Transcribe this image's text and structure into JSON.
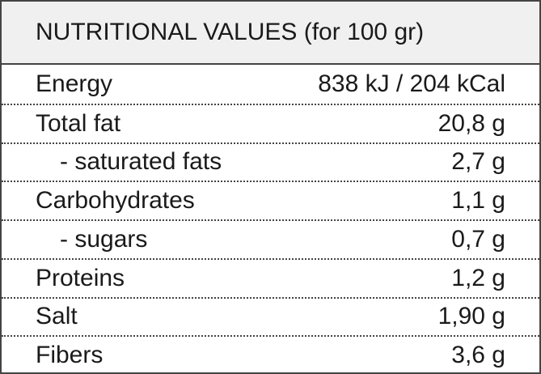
{
  "table": {
    "header": "NUTRITIONAL VALUES (for 100 gr)",
    "rows": [
      [
        "Energy",
        "838 kJ / 204 kCal"
      ],
      [
        "Total fat",
        "20,8 g"
      ],
      [
        "- saturated fats",
        "2,7 g"
      ],
      [
        "Carbohydrates",
        "1,1 g"
      ],
      [
        "- sugars",
        "0,7 g"
      ],
      [
        "Proteins",
        "1,2 g"
      ],
      [
        "Salt",
        "1,90 g"
      ],
      [
        "Fibers",
        "3,6 g"
      ]
    ]
  }
}
